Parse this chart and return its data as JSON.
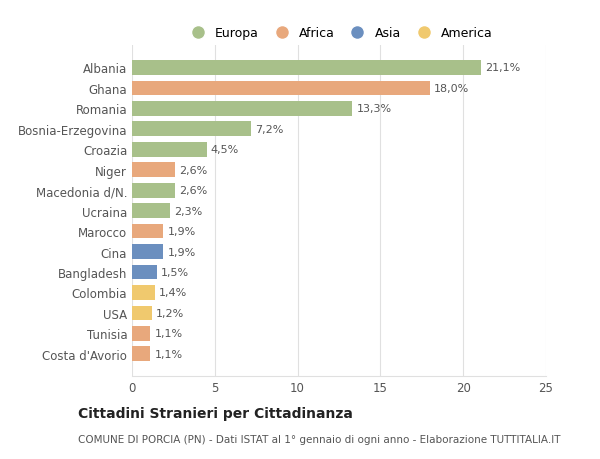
{
  "countries": [
    "Albania",
    "Ghana",
    "Romania",
    "Bosnia-Erzegovina",
    "Croazia",
    "Niger",
    "Macedonia d/N.",
    "Ucraina",
    "Marocco",
    "Cina",
    "Bangladesh",
    "Colombia",
    "USA",
    "Tunisia",
    "Costa d'Avorio"
  ],
  "values": [
    21.1,
    18.0,
    13.3,
    7.2,
    4.5,
    2.6,
    2.6,
    2.3,
    1.9,
    1.9,
    1.5,
    1.4,
    1.2,
    1.1,
    1.1
  ],
  "labels": [
    "21,1%",
    "18,0%",
    "13,3%",
    "7,2%",
    "4,5%",
    "2,6%",
    "2,6%",
    "2,3%",
    "1,9%",
    "1,9%",
    "1,5%",
    "1,4%",
    "1,2%",
    "1,1%",
    "1,1%"
  ],
  "continents": [
    "Europa",
    "Africa",
    "Europa",
    "Europa",
    "Europa",
    "Africa",
    "Europa",
    "Europa",
    "Africa",
    "Asia",
    "Asia",
    "America",
    "America",
    "Africa",
    "Africa"
  ],
  "colors": {
    "Europa": "#a8c08a",
    "Africa": "#e8a87c",
    "Asia": "#6b8fbf",
    "America": "#f0c96e"
  },
  "legend_order": [
    "Europa",
    "Africa",
    "Asia",
    "America"
  ],
  "xlim": [
    0,
    25
  ],
  "xticks": [
    0,
    5,
    10,
    15,
    20,
    25
  ],
  "title": "Cittadini Stranieri per Cittadinanza",
  "subtitle": "COMUNE DI PORCIA (PN) - Dati ISTAT al 1° gennaio di ogni anno - Elaborazione TUTTITALIA.IT",
  "background_color": "#ffffff",
  "grid_color": "#e0e0e0",
  "bar_height": 0.72,
  "label_fontsize": 8,
  "ytick_fontsize": 8.5,
  "xtick_fontsize": 8.5,
  "title_fontsize": 10,
  "subtitle_fontsize": 7.5,
  "legend_fontsize": 9,
  "legend_marker_size": 10
}
